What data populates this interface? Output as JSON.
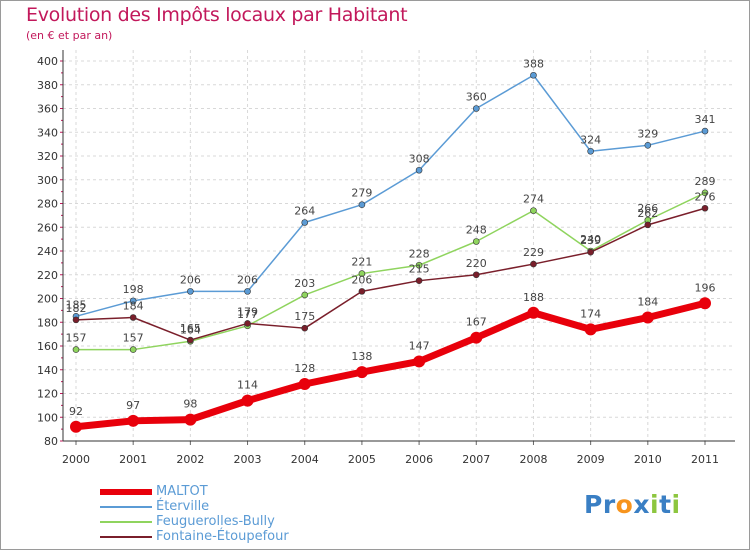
{
  "title": "Evolution des Impôts locaux par Habitant",
  "subtitle": "(en € et par an)",
  "brand": {
    "letters": [
      "P",
      "r",
      "o",
      "x",
      "i",
      "t",
      "i"
    ],
    "colors": [
      "#3a7fc4",
      "#3a7fc4",
      "#f7941d",
      "#3a7fc4",
      "#8dc63f",
      "#3a7fc4",
      "#8dc63f"
    ]
  },
  "chart_data": {
    "type": "line",
    "x": [
      "2000",
      "2001",
      "2002",
      "2003",
      "2004",
      "2005",
      "2006",
      "2007",
      "2008",
      "2009",
      "2010",
      "2011"
    ],
    "ylim": [
      80,
      400
    ],
    "yticks": [
      80,
      100,
      120,
      140,
      160,
      180,
      200,
      220,
      240,
      260,
      280,
      300,
      320,
      340,
      360,
      380,
      400
    ],
    "grid": true,
    "legend_position": "bottom-left",
    "series": [
      {
        "name": "MALTOT",
        "color": "#e8000b",
        "values": [
          92,
          97,
          98,
          114,
          128,
          138,
          147,
          167,
          188,
          174,
          184,
          196
        ]
      },
      {
        "name": "Éterville",
        "color": "#5b9bd5",
        "values": [
          185,
          198,
          206,
          206,
          264,
          279,
          308,
          360,
          388,
          324,
          329,
          341
        ]
      },
      {
        "name": "Feuguerolles-Bully",
        "color": "#8fd45e",
        "values": [
          157,
          157,
          164,
          177,
          203,
          221,
          228,
          248,
          274,
          240,
          266,
          289
        ]
      },
      {
        "name": "Fontaine-Étoupefour",
        "color": "#7a1f2b",
        "values": [
          182,
          184,
          165,
          179,
          175,
          206,
          215,
          220,
          229,
          239,
          262,
          276
        ]
      }
    ]
  }
}
